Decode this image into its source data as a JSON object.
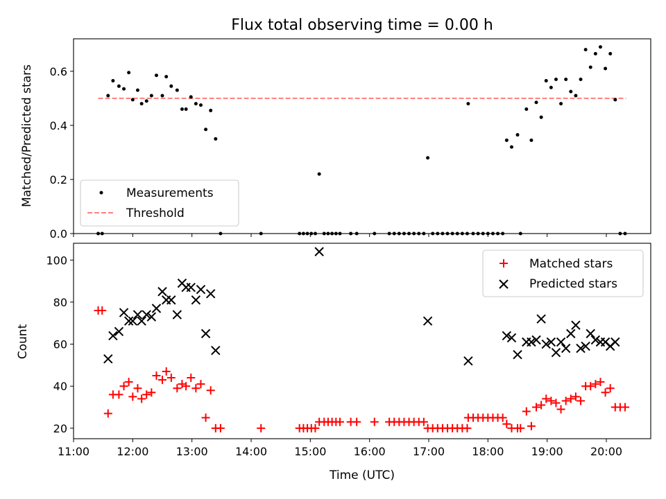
{
  "chart_data": [
    {
      "type": "scatter",
      "title": "Flux total observing time = 0.00 h",
      "xlabel": "",
      "ylabel": "Matched/Predicted stars",
      "xlim": [
        "11:00",
        "20:45"
      ],
      "ylim": [
        0,
        0.72
      ],
      "yticks": [
        "0.0",
        "0.2",
        "0.4",
        "0.6"
      ],
      "grid": false,
      "legend": {
        "placement": "lower-left",
        "entries": [
          {
            "label": "Measurements",
            "marker": "dot",
            "color": "#000000"
          },
          {
            "label": "Threshold",
            "marker": "dashed-line",
            "color": "#ff7f7f"
          }
        ]
      },
      "threshold": {
        "value": 0.5,
        "x_start": "11:25",
        "x_end": "20:20"
      },
      "series": [
        {
          "name": "Measurements",
          "color": "#000000",
          "points": [
            [
              "11:25",
              0.0
            ],
            [
              "11:29",
              0.0
            ],
            [
              "11:35",
              0.51
            ],
            [
              "11:40",
              0.565
            ],
            [
              "11:46",
              0.545
            ],
            [
              "11:51",
              0.535
            ],
            [
              "11:56",
              0.595
            ],
            [
              "12:00",
              0.495
            ],
            [
              "12:05",
              0.53
            ],
            [
              "12:09",
              0.48
            ],
            [
              "12:14",
              0.49
            ],
            [
              "12:19",
              0.51
            ],
            [
              "12:24",
              0.585
            ],
            [
              "12:30",
              0.51
            ],
            [
              "12:34",
              0.58
            ],
            [
              "12:39",
              0.545
            ],
            [
              "12:45",
              0.53
            ],
            [
              "12:50",
              0.46
            ],
            [
              "12:54",
              0.46
            ],
            [
              "12:59",
              0.505
            ],
            [
              "13:04",
              0.48
            ],
            [
              "13:09",
              0.475
            ],
            [
              "13:14",
              0.385
            ],
            [
              "13:19",
              0.455
            ],
            [
              "13:24",
              0.35
            ],
            [
              "13:29",
              0.0
            ],
            [
              "14:10",
              0.0
            ],
            [
              "14:49",
              0.0
            ],
            [
              "14:53",
              0.0
            ],
            [
              "14:57",
              0.0
            ],
            [
              "15:01",
              0.0
            ],
            [
              "15:05",
              0.0
            ],
            [
              "15:09",
              0.22
            ],
            [
              "15:14",
              0.0
            ],
            [
              "15:18",
              0.0
            ],
            [
              "15:22",
              0.0
            ],
            [
              "15:26",
              0.0
            ],
            [
              "15:30",
              0.0
            ],
            [
              "15:41",
              0.0
            ],
            [
              "15:47",
              0.0
            ],
            [
              "16:05",
              0.0
            ],
            [
              "16:20",
              0.0
            ],
            [
              "16:25",
              0.0
            ],
            [
              "16:30",
              0.0
            ],
            [
              "16:35",
              0.0
            ],
            [
              "16:40",
              0.0
            ],
            [
              "16:45",
              0.0
            ],
            [
              "16:50",
              0.0
            ],
            [
              "16:55",
              0.0
            ],
            [
              "16:59",
              0.28
            ],
            [
              "17:04",
              0.0
            ],
            [
              "17:09",
              0.0
            ],
            [
              "17:14",
              0.0
            ],
            [
              "17:19",
              0.0
            ],
            [
              "17:24",
              0.0
            ],
            [
              "17:29",
              0.0
            ],
            [
              "17:34",
              0.0
            ],
            [
              "17:39",
              0.0
            ],
            [
              "17:40",
              0.48
            ],
            [
              "17:45",
              0.0
            ],
            [
              "17:50",
              0.0
            ],
            [
              "17:55",
              0.0
            ],
            [
              "18:00",
              0.0
            ],
            [
              "18:05",
              0.0
            ],
            [
              "18:10",
              0.0
            ],
            [
              "18:15",
              0.0
            ],
            [
              "18:19",
              0.345
            ],
            [
              "18:24",
              0.32
            ],
            [
              "18:30",
              0.365
            ],
            [
              "18:33",
              0.0
            ],
            [
              "18:39",
              0.46
            ],
            [
              "18:44",
              0.345
            ],
            [
              "18:49",
              0.485
            ],
            [
              "18:54",
              0.43
            ],
            [
              "18:59",
              0.565
            ],
            [
              "19:04",
              0.54
            ],
            [
              "19:09",
              0.57
            ],
            [
              "19:14",
              0.48
            ],
            [
              "19:19",
              0.57
            ],
            [
              "19:24",
              0.525
            ],
            [
              "19:29",
              0.51
            ],
            [
              "19:34",
              0.57
            ],
            [
              "19:39",
              0.68
            ],
            [
              "19:44",
              0.615
            ],
            [
              "19:49",
              0.665
            ],
            [
              "19:54",
              0.69
            ],
            [
              "19:59",
              0.61
            ],
            [
              "20:04",
              0.665
            ],
            [
              "20:09",
              0.495
            ],
            [
              "20:14",
              0.0
            ],
            [
              "20:19",
              0.0
            ]
          ]
        }
      ]
    },
    {
      "type": "scatter",
      "title": "",
      "xlabel": "Time (UTC)",
      "ylabel": "Count",
      "xlim": [
        "11:00",
        "20:45"
      ],
      "ylim": [
        15,
        108
      ],
      "yticks": [
        "20",
        "40",
        "60",
        "80",
        "100"
      ],
      "xticks": [
        "11:00",
        "12:00",
        "13:00",
        "14:00",
        "15:00",
        "16:00",
        "17:00",
        "18:00",
        "19:00",
        "20:00"
      ],
      "grid": false,
      "legend": {
        "placement": "upper-right",
        "entries": [
          {
            "label": "Matched stars",
            "marker": "plus",
            "color": "#ff0000"
          },
          {
            "label": "Predicted stars",
            "marker": "x",
            "color": "#000000"
          }
        ]
      },
      "series": [
        {
          "name": "Matched stars",
          "marker": "plus",
          "color": "#ff0000",
          "points": [
            [
              "11:25",
              76
            ],
            [
              "11:29",
              76
            ],
            [
              "11:35",
              27
            ],
            [
              "11:40",
              36
            ],
            [
              "11:46",
              36
            ],
            [
              "11:51",
              40
            ],
            [
              "11:56",
              42
            ],
            [
              "12:00",
              35
            ],
            [
              "12:05",
              39
            ],
            [
              "12:09",
              34
            ],
            [
              "12:14",
              36
            ],
            [
              "12:19",
              37
            ],
            [
              "12:24",
              45
            ],
            [
              "12:30",
              43
            ],
            [
              "12:34",
              47
            ],
            [
              "12:39",
              44
            ],
            [
              "12:45",
              39
            ],
            [
              "12:50",
              41
            ],
            [
              "12:54",
              40
            ],
            [
              "12:59",
              44
            ],
            [
              "13:04",
              39
            ],
            [
              "13:09",
              41
            ],
            [
              "13:14",
              25
            ],
            [
              "13:19",
              38
            ],
            [
              "13:24",
              20
            ],
            [
              "13:29",
              20
            ],
            [
              "14:10",
              20
            ],
            [
              "14:49",
              20
            ],
            [
              "14:53",
              20
            ],
            [
              "14:57",
              20
            ],
            [
              "15:01",
              20
            ],
            [
              "15:05",
              20
            ],
            [
              "15:09",
              23
            ],
            [
              "15:14",
              23
            ],
            [
              "15:18",
              23
            ],
            [
              "15:22",
              23
            ],
            [
              "15:26",
              23
            ],
            [
              "15:30",
              23
            ],
            [
              "15:41",
              23
            ],
            [
              "15:47",
              23
            ],
            [
              "16:05",
              23
            ],
            [
              "16:20",
              23
            ],
            [
              "16:25",
              23
            ],
            [
              "16:30",
              23
            ],
            [
              "16:35",
              23
            ],
            [
              "16:40",
              23
            ],
            [
              "16:45",
              23
            ],
            [
              "16:50",
              23
            ],
            [
              "16:55",
              23
            ],
            [
              "16:59",
              20
            ],
            [
              "17:04",
              20
            ],
            [
              "17:09",
              20
            ],
            [
              "17:14",
              20
            ],
            [
              "17:19",
              20
            ],
            [
              "17:24",
              20
            ],
            [
              "17:29",
              20
            ],
            [
              "17:34",
              20
            ],
            [
              "17:39",
              20
            ],
            [
              "17:40",
              25
            ],
            [
              "17:45",
              25
            ],
            [
              "17:50",
              25
            ],
            [
              "17:55",
              25
            ],
            [
              "18:00",
              25
            ],
            [
              "18:05",
              25
            ],
            [
              "18:10",
              25
            ],
            [
              "18:15",
              25
            ],
            [
              "18:19",
              22
            ],
            [
              "18:24",
              20
            ],
            [
              "18:30",
              20
            ],
            [
              "18:33",
              20
            ],
            [
              "18:39",
              28
            ],
            [
              "18:44",
              21
            ],
            [
              "18:49",
              30
            ],
            [
              "18:54",
              31
            ],
            [
              "18:59",
              34
            ],
            [
              "19:04",
              33
            ],
            [
              "19:09",
              32
            ],
            [
              "19:14",
              29
            ],
            [
              "19:19",
              33
            ],
            [
              "19:24",
              34
            ],
            [
              "19:29",
              35
            ],
            [
              "19:34",
              33
            ],
            [
              "19:39",
              40
            ],
            [
              "19:44",
              40
            ],
            [
              "19:49",
              41
            ],
            [
              "19:54",
              42
            ],
            [
              "19:59",
              37
            ],
            [
              "20:04",
              39
            ],
            [
              "20:09",
              30
            ],
            [
              "20:14",
              30
            ],
            [
              "20:19",
              30
            ]
          ]
        },
        {
          "name": "Predicted stars",
          "marker": "x",
          "color": "#000000",
          "points": [
            [
              "11:35",
              53
            ],
            [
              "11:40",
              64
            ],
            [
              "11:46",
              66
            ],
            [
              "11:51",
              75
            ],
            [
              "11:56",
              71
            ],
            [
              "12:00",
              71
            ],
            [
              "12:05",
              74
            ],
            [
              "12:09",
              71
            ],
            [
              "12:14",
              74
            ],
            [
              "12:19",
              73
            ],
            [
              "12:24",
              77
            ],
            [
              "12:30",
              85
            ],
            [
              "12:34",
              81
            ],
            [
              "12:39",
              81
            ],
            [
              "12:45",
              74
            ],
            [
              "12:50",
              89
            ],
            [
              "12:54",
              87
            ],
            [
              "12:59",
              87
            ],
            [
              "13:04",
              81
            ],
            [
              "13:09",
              86
            ],
            [
              "13:14",
              65
            ],
            [
              "13:19",
              84
            ],
            [
              "13:24",
              57
            ],
            [
              "15:09",
              104
            ],
            [
              "16:59",
              71
            ],
            [
              "17:40",
              52
            ],
            [
              "18:19",
              64
            ],
            [
              "18:24",
              63
            ],
            [
              "18:30",
              55
            ],
            [
              "18:39",
              61
            ],
            [
              "18:44",
              61
            ],
            [
              "18:49",
              62
            ],
            [
              "18:54",
              72
            ],
            [
              "18:59",
              60
            ],
            [
              "19:04",
              61
            ],
            [
              "19:09",
              56
            ],
            [
              "19:14",
              61
            ],
            [
              "19:19",
              58
            ],
            [
              "19:24",
              65
            ],
            [
              "19:29",
              69
            ],
            [
              "19:34",
              58
            ],
            [
              "19:39",
              59
            ],
            [
              "19:44",
              65
            ],
            [
              "19:49",
              62
            ],
            [
              "19:54",
              61
            ],
            [
              "19:59",
              61
            ],
            [
              "20:04",
              59
            ],
            [
              "20:09",
              61
            ]
          ]
        }
      ]
    }
  ]
}
